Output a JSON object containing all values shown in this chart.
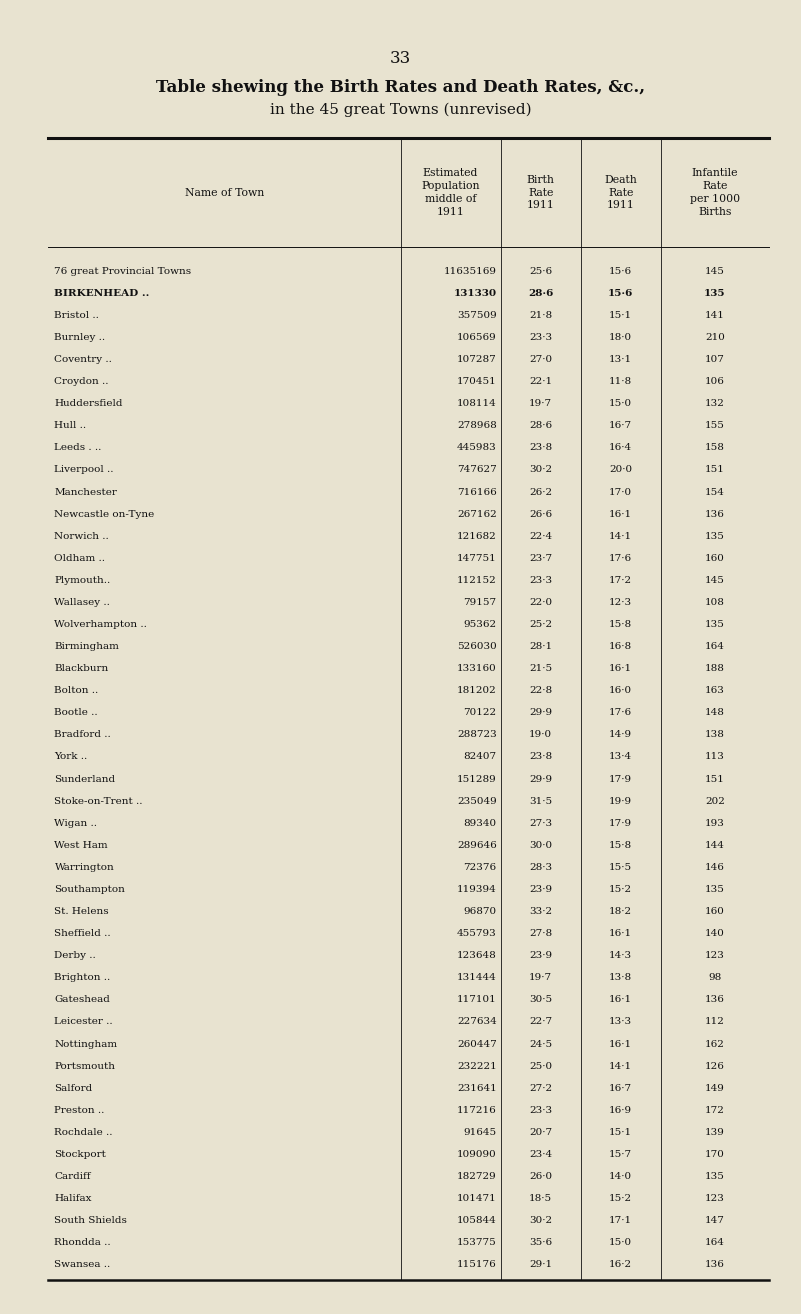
{
  "page_number": "33",
  "title_line1": "Table shewing the Birth Rates and Death Rates, &c.,",
  "title_line2": "in the 45 great Towns (unrevised)",
  "col_headers_line1": [
    "",
    "Estimated",
    "Birth",
    "Death",
    "Infantile"
  ],
  "col_headers_line2": [
    "Name of Town",
    "Population",
    "Rate",
    "Rate",
    "Rate"
  ],
  "col_headers_line3": [
    "",
    "middle of",
    "1911",
    "1911",
    "per 1000"
  ],
  "col_headers_line4": [
    "",
    "1911",
    "",
    "",
    "Births"
  ],
  "rows": [
    [
      "76 great Provincial Towns",
      "11635169",
      "25·6",
      "15·6",
      "145",
      false
    ],
    [
      "BIRKENHEAD ..",
      "131330",
      "28·6",
      "15·6",
      "135",
      true
    ],
    [
      "Bristol ..",
      "357509",
      "21·8",
      "15·1",
      "141",
      false
    ],
    [
      "Burnley ..",
      "106569",
      "23·3",
      "18·0",
      "210",
      false
    ],
    [
      "Coventry ..",
      "107287",
      "27·0",
      "13·1",
      "107",
      false
    ],
    [
      "Croydon ..",
      "170451",
      "22·1",
      "11·8",
      "106",
      false
    ],
    [
      "Huddersfield",
      "108114",
      "19·7",
      "15·0",
      "132",
      false
    ],
    [
      "Hull ..",
      "278968",
      "28·6",
      "16·7",
      "155",
      false
    ],
    [
      "Leeds . ..",
      "445983",
      "23·8",
      "16·4",
      "158",
      false
    ],
    [
      "Liverpool ..",
      "747627",
      "30·2",
      "20·0",
      "151",
      false
    ],
    [
      "Manchester",
      "716166",
      "26·2",
      "17·0",
      "154",
      false
    ],
    [
      "Newcastle on-Tyne",
      "267162",
      "26·6",
      "16·1",
      "136",
      false
    ],
    [
      "Norwich ..",
      "121682",
      "22·4",
      "14·1",
      "135",
      false
    ],
    [
      "Oldham ..",
      "147751",
      "23·7",
      "17·6",
      "160",
      false
    ],
    [
      "Plymouth..",
      "112152",
      "23·3",
      "17·2",
      "145",
      false
    ],
    [
      "Wallasey ..",
      "79157",
      "22·0",
      "12·3",
      "108",
      false
    ],
    [
      "Wolverhampton ..",
      "95362",
      "25·2",
      "15·8",
      "135",
      false
    ],
    [
      "Birmingham",
      "526030",
      "28·1",
      "16·8",
      "164",
      false
    ],
    [
      "Blackburn",
      "133160",
      "21·5",
      "16·1",
      "188",
      false
    ],
    [
      "Bolton ..",
      "181202",
      "22·8",
      "16·0",
      "163",
      false
    ],
    [
      "Bootle ..",
      "70122",
      "29·9",
      "17·6",
      "148",
      false
    ],
    [
      "Bradford ..",
      "288723",
      "19·0",
      "14·9",
      "138",
      false
    ],
    [
      "York ..",
      "82407",
      "23·8",
      "13·4",
      "113",
      false
    ],
    [
      "Sunderland",
      "151289",
      "29·9",
      "17·9",
      "151",
      false
    ],
    [
      "Stoke-on-Trent ..",
      "235049",
      "31·5",
      "19·9",
      "202",
      false
    ],
    [
      "Wigan ..",
      "89340",
      "27·3",
      "17·9",
      "193",
      false
    ],
    [
      "West Ham",
      "289646",
      "30·0",
      "15·8",
      "144",
      false
    ],
    [
      "Warrington",
      "72376",
      "28·3",
      "15·5",
      "146",
      false
    ],
    [
      "Southampton",
      "119394",
      "23·9",
      "15·2",
      "135",
      false
    ],
    [
      "St. Helens",
      "96870",
      "33·2",
      "18·2",
      "160",
      false
    ],
    [
      "Sheffield ..",
      "455793",
      "27·8",
      "16·1",
      "140",
      false
    ],
    [
      "Derby ..",
      "123648",
      "23·9",
      "14·3",
      "123",
      false
    ],
    [
      "Brighton ..",
      "131444",
      "19·7",
      "13·8",
      "98",
      false
    ],
    [
      "Gateshead",
      "117101",
      "30·5",
      "16·1",
      "136",
      false
    ],
    [
      "Leicester ..",
      "227634",
      "22·7",
      "13·3",
      "112",
      false
    ],
    [
      "Nottingham",
      "260447",
      "24·5",
      "16·1",
      "162",
      false
    ],
    [
      "Portsmouth",
      "232221",
      "25·0",
      "14·1",
      "126",
      false
    ],
    [
      "Salford",
      "231641",
      "27·2",
      "16·7",
      "149",
      false
    ],
    [
      "Preston ..",
      "117216",
      "23·3",
      "16·9",
      "172",
      false
    ],
    [
      "Rochdale ..",
      "91645",
      "20·7",
      "15·1",
      "139",
      false
    ],
    [
      "Stockport",
      "109090",
      "23·4",
      "15·7",
      "170",
      false
    ],
    [
      "Cardiff",
      "182729",
      "26·0",
      "14·0",
      "135",
      false
    ],
    [
      "Halifax",
      "101471",
      "18·5",
      "15·2",
      "123",
      false
    ],
    [
      "South Shields",
      "105844",
      "30·2",
      "17·1",
      "147",
      false
    ],
    [
      "Rhondda ..",
      "153775",
      "35·6",
      "15·0",
      "164",
      false
    ],
    [
      "Swansea ..",
      "115176",
      "29·1",
      "16·2",
      "136",
      false
    ]
  ],
  "background_color": "#e8e3d0",
  "text_color": "#111111",
  "line_color": "#111111",
  "fig_width": 8.01,
  "fig_height": 13.14,
  "dpi": 100
}
